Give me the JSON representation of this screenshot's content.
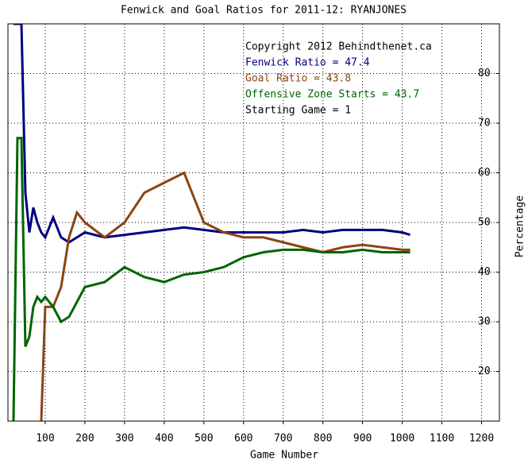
{
  "chart_data": {
    "type": "line",
    "title": "Fenwick and Goal Ratios for 2011-12: RYANJONES",
    "x_label": "Game Number",
    "y_label": "Percentage",
    "x": [
      20,
      30,
      40,
      50,
      60,
      70,
      80,
      90,
      100,
      120,
      140,
      160,
      180,
      200,
      250,
      300,
      350,
      400,
      450,
      500,
      550,
      600,
      650,
      700,
      750,
      800,
      850,
      900,
      950,
      1000,
      1020
    ],
    "series": [
      {
        "name": "Fenwick Ratio = 47.4",
        "color": "#000080",
        "values": [
          90,
          90,
          90,
          56,
          48,
          53,
          50,
          48,
          47,
          51,
          47,
          46,
          47,
          48,
          47,
          47.5,
          48,
          48.5,
          49,
          48.5,
          48,
          48,
          48,
          48,
          48.5,
          48,
          48.5,
          48.5,
          48.5,
          48,
          47.5
        ]
      },
      {
        "name": "Goal Ratio = 43.8",
        "color": "#8b4513",
        "values": [
          null,
          null,
          null,
          null,
          null,
          null,
          null,
          10,
          33,
          33,
          37,
          47,
          52,
          50,
          47,
          50,
          56,
          58,
          60,
          50,
          48,
          47,
          47,
          46,
          45,
          44,
          45,
          45.5,
          45,
          44.5,
          44.5
        ]
      },
      {
        "name": "Offensive Zone Starts = 43.7",
        "color": "#006400",
        "values": [
          10,
          67,
          67,
          25,
          27,
          33,
          35,
          34,
          35,
          33,
          30,
          31,
          34,
          37,
          38,
          41,
          39,
          38,
          39.5,
          40,
          41,
          43,
          44,
          44.5,
          44.5,
          44,
          44,
          44.5,
          44,
          44,
          44
        ]
      }
    ],
    "annotations": [
      {
        "text": "Copyright 2012 Behindthenet.ca",
        "color": "#000000"
      },
      {
        "text": "Starting Game = 1",
        "color": "#000000"
      }
    ],
    "xlim": [
      6,
      1245
    ],
    "ylim": [
      10,
      90
    ],
    "xticks": [
      100,
      200,
      300,
      400,
      500,
      600,
      700,
      800,
      900,
      1000,
      1100,
      1200
    ],
    "yticks": [
      20,
      30,
      40,
      50,
      60,
      70,
      80
    ],
    "grid": true
  }
}
